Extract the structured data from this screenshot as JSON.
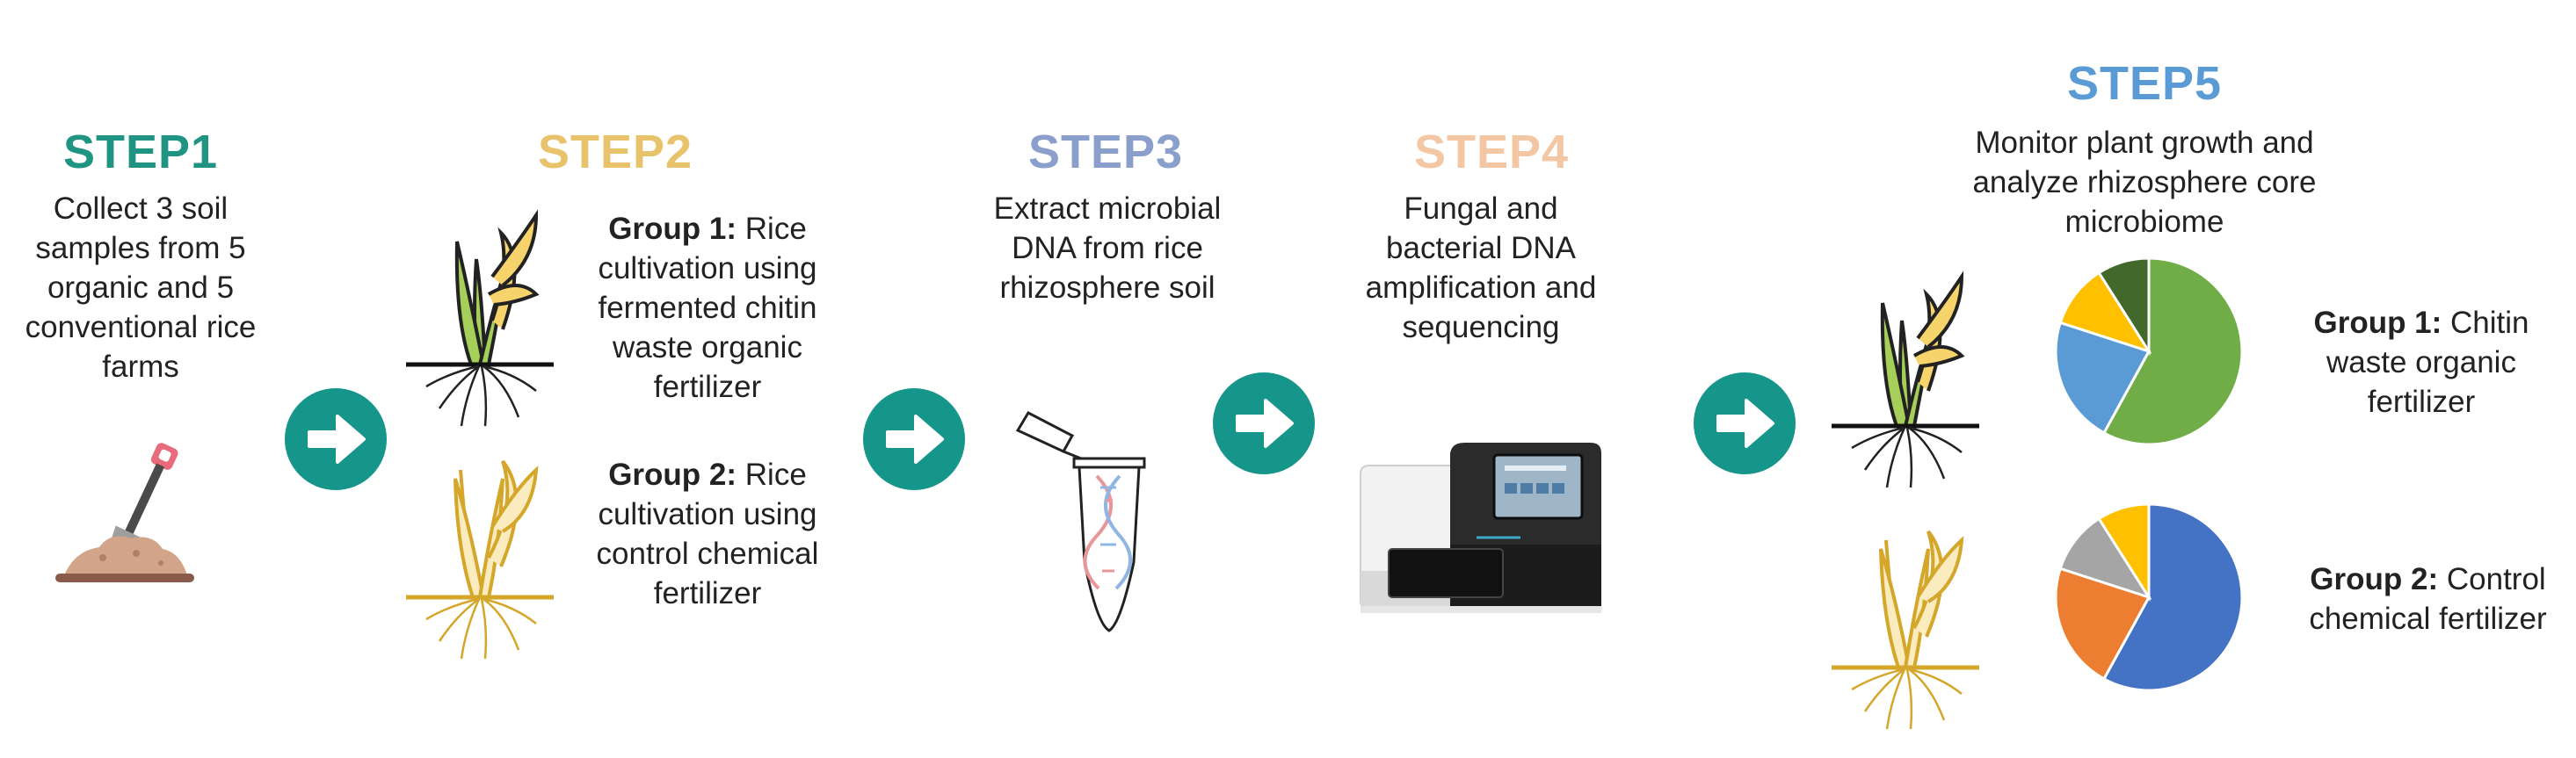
{
  "colors": {
    "step1": "#1f9483",
    "step2": "#e8c36c",
    "step3": "#8a9fcc",
    "step4": "#f3c7a4",
    "step5": "#5b9bd5",
    "arrow": "#16968a",
    "text": "#222222"
  },
  "step1": {
    "title": "STEP1",
    "text": "Collect 3 soil samples from 5 organic and 5 conventional rice farms",
    "icon": "shovel-soil-icon"
  },
  "step2": {
    "title": "STEP2",
    "group1_label": "Group 1:",
    "group1_text": "Rice cultivation using fermented chitin waste organic fertilizer",
    "group2_label": "Group 2:",
    "group2_text": "Rice cultivation using control chemical fertilizer",
    "icons": [
      "healthy-rice-plant-icon",
      "yellow-rice-plant-icon"
    ]
  },
  "step3": {
    "title": "STEP3",
    "text": "Extract microbial DNA from rice rhizosphere soil",
    "icon": "dna-tube-icon"
  },
  "step4": {
    "title": "STEP4",
    "text": "Fungal and bacterial DNA amplification and sequencing",
    "icon": "sequencer-machine-icon"
  },
  "step5": {
    "title": "STEP5",
    "text": "Monitor plant growth and analyze rhizosphere core microbiome",
    "group1_label": "Group 1:",
    "group1_text": "Chitin waste organic fertilizer",
    "group2_label": "Group 2:",
    "group2_text": "Control chemical fertilizer"
  },
  "chart_data": [
    {
      "type": "pie",
      "title": "",
      "series_name": "",
      "values": [
        58,
        22,
        11,
        9
      ],
      "colors": [
        "#70ad47",
        "#5b9bd5",
        "#ffc000",
        "#43682b"
      ]
    },
    {
      "type": "pie",
      "title": "",
      "series_name": "",
      "values": [
        58,
        22,
        11,
        9
      ],
      "colors": [
        "#4472c4",
        "#ed7d31",
        "#a5a5a5",
        "#ffc000"
      ]
    }
  ],
  "arrows": [
    "arrow-1",
    "arrow-2",
    "arrow-3",
    "arrow-4"
  ]
}
